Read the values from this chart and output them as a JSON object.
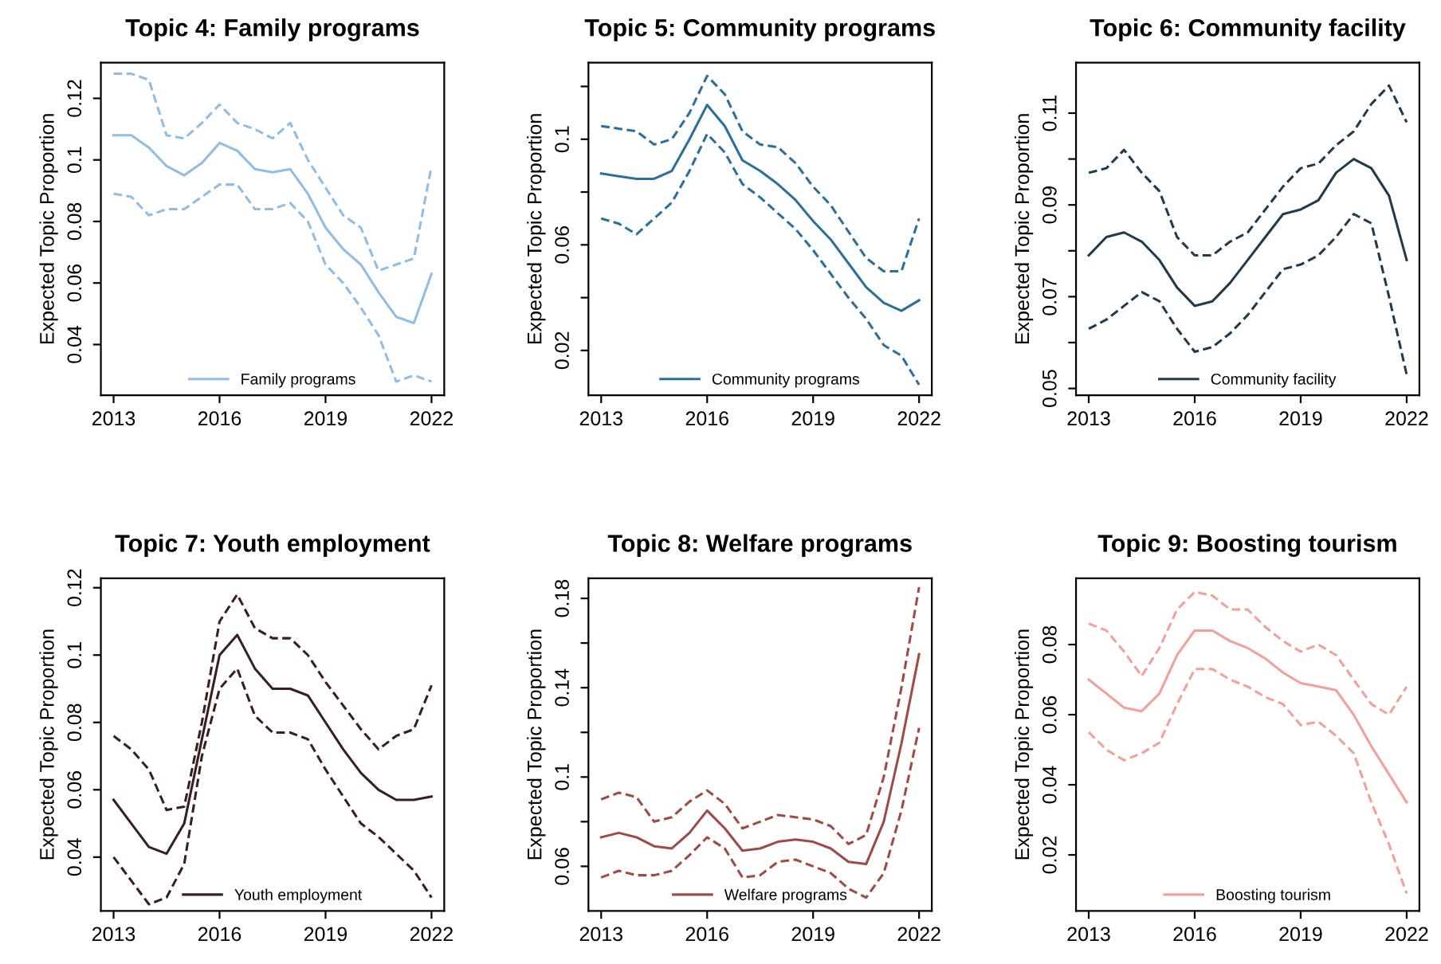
{
  "chart_data": [
    {
      "type": "line",
      "title": "Topic 4: Family programs",
      "ylabel": "Expected Topic Proportion",
      "x": [
        2013,
        2013.5,
        2014,
        2014.5,
        2015,
        2015.5,
        2016,
        2016.5,
        2017,
        2017.5,
        2018,
        2018.5,
        2019,
        2019.5,
        2020,
        2020.5,
        2021,
        2021.5,
        2022
      ],
      "xlim": [
        2012.64,
        2022.36
      ],
      "xticks": [
        2013,
        2016,
        2019,
        2022
      ],
      "ylim": [
        0.0235,
        0.1316
      ],
      "yticks": [
        0.04,
        0.06,
        0.08,
        0.1,
        0.12
      ],
      "legend": "bottom",
      "series": [
        {
          "name": "Family programs",
          "color": "#8fbde6",
          "line_style": "solid",
          "values": [
            0.108,
            0.108,
            0.104,
            0.098,
            0.095,
            0.099,
            0.1055,
            0.103,
            0.097,
            0.096,
            0.097,
            0.089,
            0.078,
            0.071,
            0.066,
            0.057,
            0.049,
            0.047,
            0.063
          ]
        },
        {
          "color": "#8fbde6",
          "line_style": "dashed",
          "values": [
            0.128,
            0.128,
            0.126,
            0.108,
            0.107,
            0.112,
            0.118,
            0.112,
            0.11,
            0.107,
            0.112,
            0.1,
            0.091,
            0.082,
            0.078,
            0.064,
            0.066,
            0.068,
            0.098
          ]
        },
        {
          "color": "#8fbde6",
          "line_style": "dashed",
          "values": [
            0.089,
            0.088,
            0.082,
            0.084,
            0.084,
            0.088,
            0.092,
            0.092,
            0.084,
            0.084,
            0.086,
            0.08,
            0.066,
            0.06,
            0.052,
            0.043,
            0.028,
            0.03,
            0.028
          ]
        }
      ]
    },
    {
      "type": "line",
      "title": "Topic 5: Community programs",
      "ylabel": "Expected Topic Proportion",
      "x": [
        2013,
        2013.5,
        2014,
        2014.5,
        2015,
        2015.5,
        2016,
        2016.5,
        2017,
        2017.5,
        2018,
        2018.5,
        2019,
        2019.5,
        2020,
        2020.5,
        2021,
        2021.5,
        2022
      ],
      "xlim": [
        2012.64,
        2022.36
      ],
      "xticks": [
        2013,
        2016,
        2019,
        2022
      ],
      "ylim": [
        0.003,
        0.129
      ],
      "yticks": [
        0.02,
        {
          "value": 0.04,
          "label": null
        },
        0.06,
        {
          "value": 0.08,
          "label": null
        },
        0.1,
        {
          "value": 0.12,
          "label": null
        }
      ],
      "legend": "bottom",
      "series": [
        {
          "name": "Community programs",
          "color": "#2a6f9e",
          "line_style": "solid",
          "values": [
            0.087,
            0.086,
            0.085,
            0.085,
            0.088,
            0.1,
            0.113,
            0.105,
            0.092,
            0.088,
            0.083,
            0.077,
            0.069,
            0.062,
            0.053,
            0.044,
            0.038,
            0.035,
            0.039
          ]
        },
        {
          "color": "#2a6f9e",
          "line_style": "dashed",
          "values": [
            0.105,
            0.104,
            0.103,
            0.098,
            0.1,
            0.11,
            0.124,
            0.117,
            0.103,
            0.098,
            0.097,
            0.091,
            0.082,
            0.075,
            0.065,
            0.055,
            0.05,
            0.05,
            0.07
          ]
        },
        {
          "color": "#2a6f9e",
          "line_style": "dashed",
          "values": [
            0.07,
            0.068,
            0.064,
            0.07,
            0.076,
            0.088,
            0.102,
            0.095,
            0.083,
            0.078,
            0.072,
            0.066,
            0.058,
            0.049,
            0.04,
            0.032,
            0.022,
            0.018,
            0.007
          ]
        }
      ]
    },
    {
      "type": "line",
      "title": "Topic 6: Community facility",
      "ylabel": "Expected Topic Proportion",
      "x": [
        2013,
        2013.5,
        2014,
        2014.5,
        2015,
        2015.5,
        2016,
        2016.5,
        2017,
        2017.5,
        2018,
        2018.5,
        2019,
        2019.5,
        2020,
        2020.5,
        2021,
        2021.5,
        2022
      ],
      "xlim": [
        2012.64,
        2022.36
      ],
      "xticks": [
        2013,
        2016,
        2019,
        2022
      ],
      "ylim": [
        0.0485,
        0.121
      ],
      "yticks": [
        0.05,
        {
          "value": 0.06,
          "label": null
        },
        0.07,
        {
          "value": 0.08,
          "label": null
        },
        0.09,
        {
          "value": 0.1,
          "label": null
        },
        0.11
      ],
      "legend": "bottom",
      "series": [
        {
          "name": "Community facility",
          "color": "#1f3b4d",
          "line_style": "solid",
          "values": [
            0.079,
            0.083,
            0.084,
            0.082,
            0.078,
            0.072,
            0.068,
            0.069,
            0.073,
            0.078,
            0.083,
            0.088,
            0.089,
            0.091,
            0.097,
            0.1,
            0.098,
            0.092,
            0.078
          ]
        },
        {
          "color": "#1f3b4d",
          "line_style": "dashed",
          "values": [
            0.097,
            0.098,
            0.102,
            0.097,
            0.093,
            0.083,
            0.079,
            0.079,
            0.082,
            0.084,
            0.089,
            0.094,
            0.098,
            0.099,
            0.103,
            0.106,
            0.112,
            0.116,
            0.108
          ]
        },
        {
          "color": "#1f3b4d",
          "line_style": "dashed",
          "values": [
            0.063,
            0.065,
            0.068,
            0.071,
            0.069,
            0.063,
            0.058,
            0.059,
            0.062,
            0.066,
            0.071,
            0.076,
            0.077,
            0.079,
            0.083,
            0.088,
            0.086,
            0.07,
            0.053
          ]
        }
      ]
    },
    {
      "type": "line",
      "title": "Topic 7: Youth employment",
      "ylabel": "Expected Topic Proportion",
      "x": [
        2013,
        2013.5,
        2014,
        2014.5,
        2015,
        2015.5,
        2016,
        2016.5,
        2017,
        2017.5,
        2018,
        2018.5,
        2019,
        2019.5,
        2020,
        2020.5,
        2021,
        2021.5,
        2022
      ],
      "xlim": [
        2012.64,
        2022.36
      ],
      "xticks": [
        2013,
        2016,
        2019,
        2022
      ],
      "ylim": [
        0.024,
        0.1228
      ],
      "yticks": [
        0.04,
        0.06,
        0.08,
        0.1,
        0.12
      ],
      "legend": "bottom",
      "series": [
        {
          "name": "Youth employment",
          "color": "#3a1f1f",
          "line_style": "solid",
          "values": [
            0.057,
            0.05,
            0.043,
            0.041,
            0.05,
            0.075,
            0.1,
            0.106,
            0.096,
            0.09,
            0.09,
            0.088,
            0.08,
            0.072,
            0.065,
            0.06,
            0.057,
            0.057,
            0.058
          ]
        },
        {
          "color": "#3a1f1f",
          "line_style": "dashed",
          "values": [
            0.076,
            0.072,
            0.066,
            0.054,
            0.055,
            0.08,
            0.11,
            0.118,
            0.108,
            0.105,
            0.105,
            0.1,
            0.092,
            0.085,
            0.078,
            0.072,
            0.076,
            0.078,
            0.091
          ]
        },
        {
          "color": "#3a1f1f",
          "line_style": "dashed",
          "values": [
            0.04,
            0.033,
            0.026,
            0.028,
            0.038,
            0.07,
            0.09,
            0.096,
            0.082,
            0.077,
            0.077,
            0.075,
            0.066,
            0.058,
            0.05,
            0.046,
            0.041,
            0.036,
            0.028
          ]
        }
      ]
    },
    {
      "type": "line",
      "title": "Topic 8: Welfare programs",
      "ylabel": "Expected Topic Proportion",
      "x": [
        2013,
        2013.5,
        2014,
        2014.5,
        2015,
        2015.5,
        2016,
        2016.5,
        2017,
        2017.5,
        2018,
        2018.5,
        2019,
        2019.5,
        2020,
        2020.5,
        2021,
        2021.5,
        2022
      ],
      "xlim": [
        2012.64,
        2022.36
      ],
      "xticks": [
        2013,
        2016,
        2019,
        2022
      ],
      "ylim": [
        0.04,
        0.189
      ],
      "yticks": [
        0.06,
        {
          "value": 0.08,
          "label": null
        },
        0.1,
        {
          "value": 0.12,
          "label": null
        },
        0.14,
        {
          "value": 0.16,
          "label": null
        },
        0.18
      ],
      "legend": "bottom",
      "series": [
        {
          "name": "Welfare programs",
          "color": "#a04a45",
          "line_style": "solid",
          "values": [
            0.073,
            0.075,
            0.073,
            0.069,
            0.068,
            0.075,
            0.085,
            0.077,
            0.067,
            0.068,
            0.071,
            0.072,
            0.071,
            0.068,
            0.062,
            0.061,
            0.08,
            0.115,
            0.155
          ]
        },
        {
          "color": "#a04a45",
          "line_style": "dashed",
          "values": [
            0.09,
            0.093,
            0.091,
            0.08,
            0.082,
            0.089,
            0.094,
            0.088,
            0.077,
            0.08,
            0.083,
            0.082,
            0.081,
            0.078,
            0.07,
            0.074,
            0.1,
            0.14,
            0.185
          ]
        },
        {
          "color": "#a04a45",
          "line_style": "dashed",
          "values": [
            0.055,
            0.058,
            0.056,
            0.056,
            0.058,
            0.065,
            0.073,
            0.068,
            0.055,
            0.056,
            0.062,
            0.063,
            0.06,
            0.057,
            0.05,
            0.046,
            0.057,
            0.085,
            0.122
          ]
        }
      ]
    },
    {
      "type": "line",
      "title": "Topic 9: Boosting tourism",
      "ylabel": "Expected Topic Proportion",
      "x": [
        2013,
        2013.5,
        2014,
        2014.5,
        2015,
        2015.5,
        2016,
        2016.5,
        2017,
        2017.5,
        2018,
        2018.5,
        2019,
        2019.5,
        2020,
        2020.5,
        2021,
        2021.5,
        2022
      ],
      "xlim": [
        2012.64,
        2022.36
      ],
      "xticks": [
        2013,
        2016,
        2019,
        2022
      ],
      "ylim": [
        0.004,
        0.0989
      ],
      "yticks": [
        0.02,
        0.04,
        0.06,
        0.08
      ],
      "legend": "bottom",
      "series": [
        {
          "name": "Boosting tourism",
          "color": "#f4a09a",
          "line_style": "solid",
          "values": [
            0.07,
            0.066,
            0.062,
            0.061,
            0.066,
            0.077,
            0.084,
            0.084,
            0.081,
            0.079,
            0.076,
            0.072,
            0.069,
            0.068,
            0.067,
            0.06,
            0.051,
            0.043,
            0.035
          ]
        },
        {
          "color": "#f4a09a",
          "line_style": "dashed",
          "values": [
            0.086,
            0.084,
            0.078,
            0.071,
            0.079,
            0.09,
            0.095,
            0.094,
            0.09,
            0.09,
            0.085,
            0.081,
            0.078,
            0.08,
            0.077,
            0.07,
            0.063,
            0.06,
            0.068
          ]
        },
        {
          "color": "#f4a09a",
          "line_style": "dashed",
          "values": [
            0.055,
            0.05,
            0.047,
            0.049,
            0.052,
            0.063,
            0.073,
            0.073,
            0.07,
            0.068,
            0.065,
            0.063,
            0.057,
            0.058,
            0.054,
            0.049,
            0.035,
            0.023,
            0.009
          ]
        }
      ]
    }
  ]
}
